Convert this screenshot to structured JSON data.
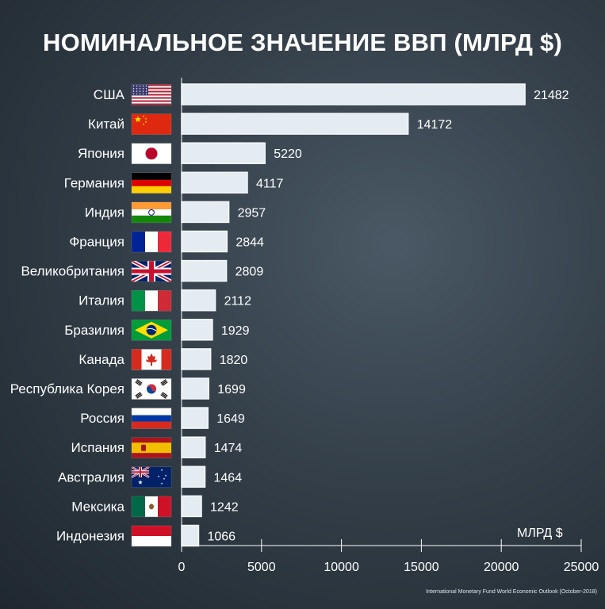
{
  "title": "НОМИНАЛЬНОЕ ЗНАЧЕНИЕ ВВП (МЛРД $)",
  "source": "International Monetary Fund World Economic Outlook (October-2018)",
  "colors": {
    "bar_fill": "#e4ecf1",
    "bar_stroke": "#f4f8fa",
    "axis": "#ffffff",
    "text": "#ffffff"
  },
  "chart_data": {
    "type": "bar",
    "orientation": "horizontal",
    "title": "НОМИНАЛЬНОЕ ЗНАЧЕНИЕ ВВП (МЛРД $)",
    "xlabel": "МЛРД $",
    "ylabel": "",
    "xlim": [
      0,
      25000
    ],
    "xticks": [
      "0",
      "5000",
      "10000",
      "15000",
      "20000",
      "25000"
    ],
    "categories": [
      "США",
      "Китай",
      "Япония",
      "Германия",
      "Индия",
      "Франция",
      "Великобритания",
      "Италия",
      "Бразилия",
      "Канада",
      "Республика Корея",
      "Россия",
      "Испания",
      "Австралия",
      "Мексика",
      "Индонезия"
    ],
    "values": [
      21482,
      14172,
      5220,
      4117,
      2957,
      2844,
      2809,
      2112,
      1929,
      1820,
      1699,
      1649,
      1474,
      1464,
      1242,
      1066
    ],
    "value_labels": [
      "21482",
      "14172",
      "5220",
      "4117",
      "2957",
      "2844",
      "2809",
      "2112",
      "1929",
      "1820",
      "1699",
      "1649",
      "1474",
      "1464",
      "1242",
      "1066"
    ],
    "flags": [
      "us-flag-icon",
      "china-flag-icon",
      "japan-flag-icon",
      "germany-flag-icon",
      "india-flag-icon",
      "france-flag-icon",
      "uk-flag-icon",
      "italy-flag-icon",
      "brazil-flag-icon",
      "canada-flag-icon",
      "south-korea-flag-icon",
      "russia-flag-icon",
      "spain-flag-icon",
      "australia-flag-icon",
      "mexico-flag-icon",
      "indonesia-flag-icon"
    ],
    "grid": false,
    "legend": "none"
  }
}
